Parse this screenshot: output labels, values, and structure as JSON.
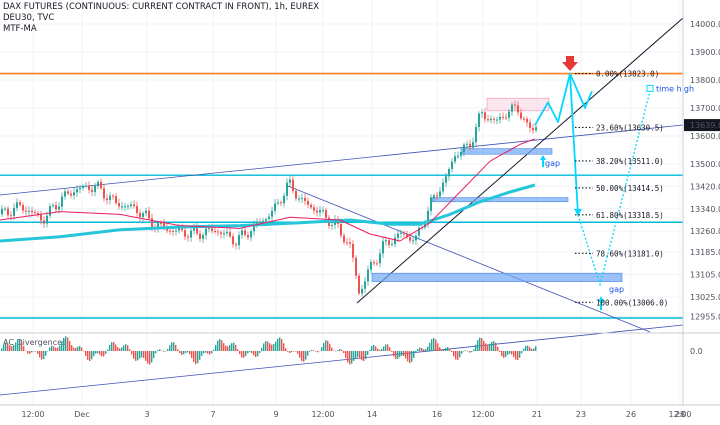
{
  "header": {
    "title": "DAX FUTURES (CONTINUOUS: CURRENT CONTRACT IN FRONT), 1h, EUREX",
    "symbol_line": "DEU30, TVC",
    "indicator": "MTF-MA"
  },
  "colors": {
    "up_candle": "#26a69a",
    "down_candle": "#ef5350",
    "ma_fast": "#e91e63",
    "ma_slow": "#26c6da",
    "horizontal_level": "#00bcd4",
    "resistance_line": "#ff7f27",
    "projection": "#00d8ff",
    "gap_box": "#6fa8f5",
    "trend_line": "#3f51b5",
    "price_tag": "#131722",
    "arrow_down": "#e53935"
  },
  "chart_data": {
    "type": "candlestick",
    "title": "DAX FUTURES (CONTINUOUS: CURRENT CONTRACT IN FRONT), 1h, EUREX",
    "y_axis": {
      "ticks": [
        "14000.0",
        "13900.0",
        "13800.0",
        "13700.0",
        "13600.0",
        "13500.0",
        "13420.0",
        "13340.0",
        "13260.0",
        "13185.0",
        "13105.0",
        "13025.0",
        "12955.0"
      ],
      "range": [
        12930,
        14010
      ],
      "last_price": "13639.0"
    },
    "x_axis": {
      "ticks": [
        "12:00",
        "Dec",
        "3",
        "7",
        "9",
        "12:00",
        "14",
        "16",
        "12:00",
        "21",
        "23",
        "26",
        "28",
        "12:00"
      ]
    },
    "price_path": [
      {
        "x": 0,
        "y": 13320
      },
      {
        "x": 20,
        "y": 13350
      },
      {
        "x": 42,
        "y": 13300
      },
      {
        "x": 60,
        "y": 13375
      },
      {
        "x": 75,
        "y": 13410
      },
      {
        "x": 95,
        "y": 13420
      },
      {
        "x": 115,
        "y": 13360
      },
      {
        "x": 135,
        "y": 13340
      },
      {
        "x": 155,
        "y": 13280
      },
      {
        "x": 175,
        "y": 13260
      },
      {
        "x": 195,
        "y": 13250
      },
      {
        "x": 215,
        "y": 13265
      },
      {
        "x": 235,
        "y": 13225
      },
      {
        "x": 255,
        "y": 13280
      },
      {
        "x": 272,
        "y": 13330
      },
      {
        "x": 288,
        "y": 13430
      },
      {
        "x": 300,
        "y": 13370
      },
      {
        "x": 318,
        "y": 13330
      },
      {
        "x": 335,
        "y": 13280
      },
      {
        "x": 350,
        "y": 13200
      },
      {
        "x": 358,
        "y": 13040
      },
      {
        "x": 368,
        "y": 13120
      },
      {
        "x": 383,
        "y": 13210
      },
      {
        "x": 400,
        "y": 13250
      },
      {
        "x": 415,
        "y": 13230
      },
      {
        "x": 430,
        "y": 13360
      },
      {
        "x": 445,
        "y": 13450
      },
      {
        "x": 455,
        "y": 13540
      },
      {
        "x": 468,
        "y": 13560
      },
      {
        "x": 480,
        "y": 13680
      },
      {
        "x": 495,
        "y": 13650
      },
      {
        "x": 508,
        "y": 13690
      },
      {
        "x": 518,
        "y": 13700
      },
      {
        "x": 527,
        "y": 13620
      },
      {
        "x": 535,
        "y": 13639
      }
    ],
    "ma_fast": [
      {
        "x": 0,
        "y": 13300
      },
      {
        "x": 60,
        "y": 13330
      },
      {
        "x": 120,
        "y": 13320
      },
      {
        "x": 180,
        "y": 13280
      },
      {
        "x": 240,
        "y": 13270
      },
      {
        "x": 290,
        "y": 13310
      },
      {
        "x": 340,
        "y": 13300
      },
      {
        "x": 370,
        "y": 13250
      },
      {
        "x": 400,
        "y": 13225
      },
      {
        "x": 430,
        "y": 13290
      },
      {
        "x": 460,
        "y": 13400
      },
      {
        "x": 490,
        "y": 13510
      },
      {
        "x": 520,
        "y": 13570
      },
      {
        "x": 535,
        "y": 13590
      }
    ],
    "ma_slow": [
      {
        "x": 0,
        "y": 13225
      },
      {
        "x": 60,
        "y": 13240
      },
      {
        "x": 120,
        "y": 13265
      },
      {
        "x": 180,
        "y": 13275
      },
      {
        "x": 240,
        "y": 13280
      },
      {
        "x": 300,
        "y": 13290
      },
      {
        "x": 350,
        "y": 13300
      },
      {
        "x": 390,
        "y": 13285
      },
      {
        "x": 420,
        "y": 13285
      },
      {
        "x": 450,
        "y": 13320
      },
      {
        "x": 480,
        "y": 13365
      },
      {
        "x": 510,
        "y": 13400
      },
      {
        "x": 535,
        "y": 13425
      }
    ],
    "horizontal_levels": [
      13460,
      13292,
      12950
    ],
    "resistance_level": 13823,
    "fibonacci": [
      {
        "label": "0.00%(13823.0)",
        "value": 13823
      },
      {
        "label": "23.60%(13630.5)",
        "value": 13630.5
      },
      {
        "label": "38.20%(13511.0)",
        "value": 13511
      },
      {
        "label": "50.00%(13414.5)",
        "value": 13414.5
      },
      {
        "label": "61.80%(13318.5)",
        "value": 13318.5
      },
      {
        "label": "78.60%(13181.0)",
        "value": 13181
      },
      {
        "label": "100.00%(13006.0)",
        "value": 13006
      }
    ],
    "gaps": [
      {
        "label": "gap",
        "top": 13555,
        "bottom": 13535
      },
      {
        "label": "gap",
        "top": 13380,
        "bottom": 13365
      },
      {
        "label": "",
        "top": 13110,
        "bottom": 13080
      }
    ],
    "projection_path": [
      {
        "x": 535,
        "y": 13639
      },
      {
        "x": 548,
        "y": 13720
      },
      {
        "x": 558,
        "y": 13650
      },
      {
        "x": 570,
        "y": 13823
      },
      {
        "x": 585,
        "y": 13700
      },
      {
        "x": 592,
        "y": 13760
      }
    ],
    "time_high_label": "time high",
    "secondary_panel": {
      "title": "AC Divergences",
      "zero_tick": "0.0"
    }
  }
}
